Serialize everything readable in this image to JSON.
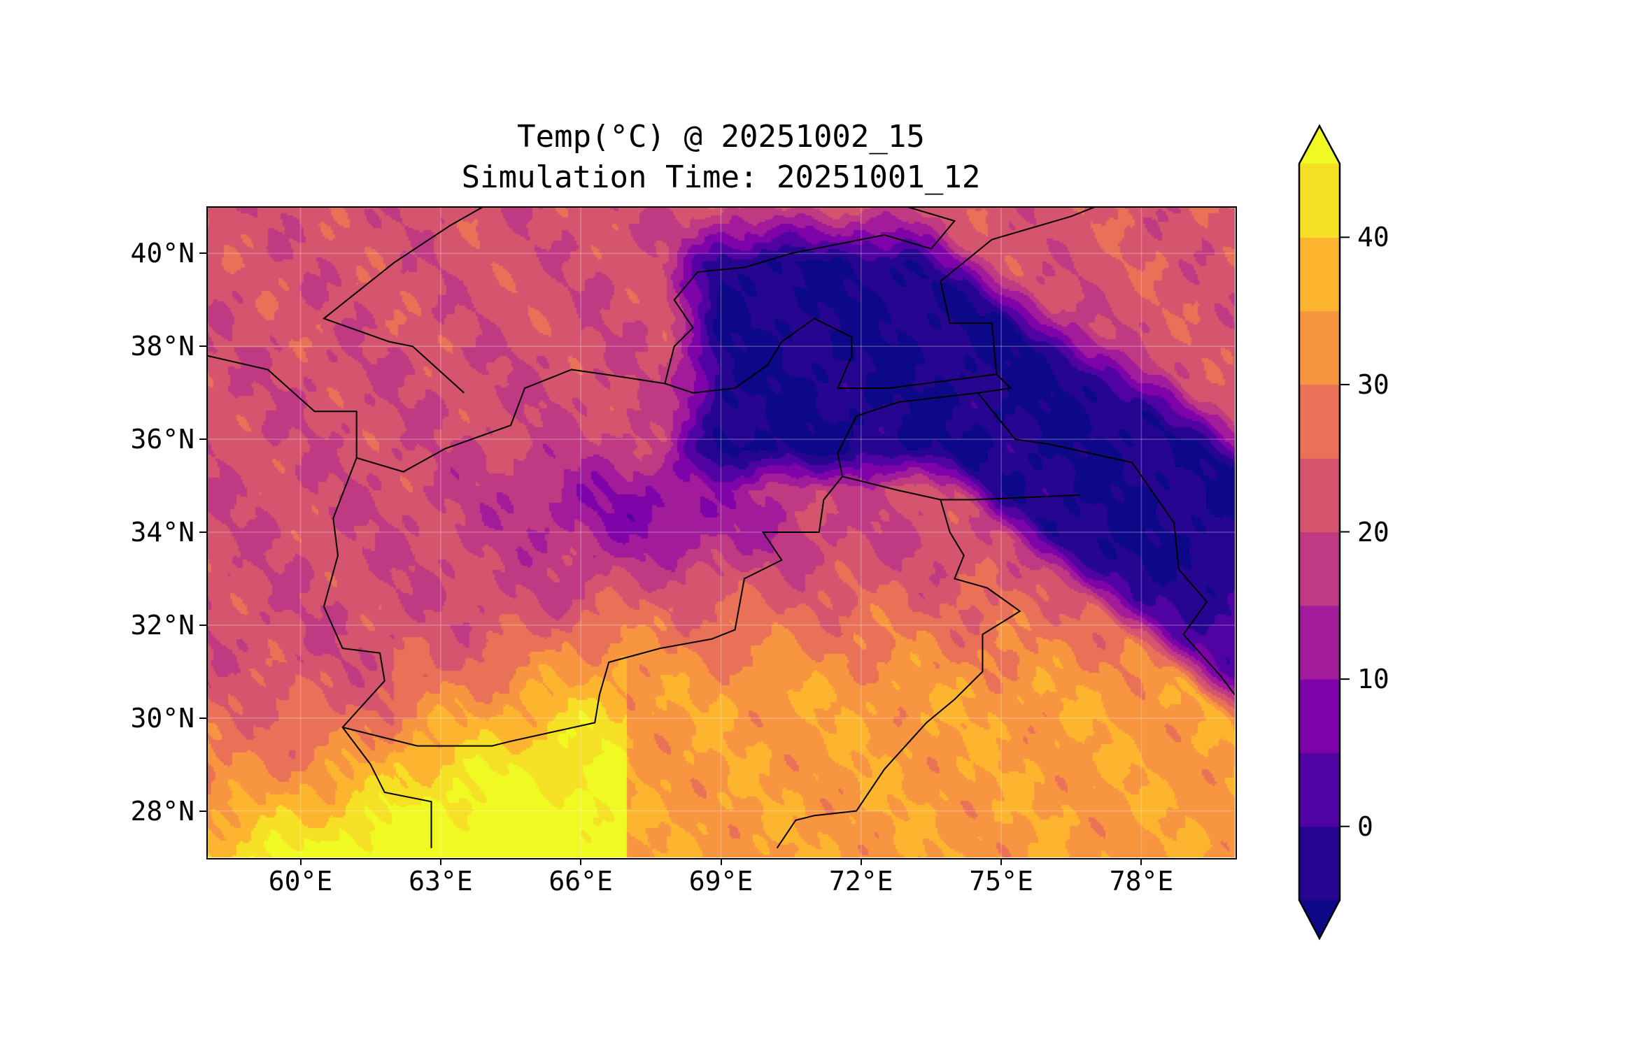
{
  "chart_data": {
    "type": "heatmap",
    "title": "Temp(°C) @ 20251002_15",
    "subtitle": "Simulation Time: 20251001_12",
    "xlabel": "",
    "ylabel": "",
    "xlim": [
      58,
      80
    ],
    "ylim": [
      27,
      41
    ],
    "x_ticks": [
      60,
      63,
      66,
      69,
      72,
      75,
      78
    ],
    "x_tick_labels": [
      "60°E",
      "63°E",
      "66°E",
      "69°E",
      "72°E",
      "75°E",
      "78°E"
    ],
    "y_ticks": [
      28,
      30,
      32,
      34,
      36,
      38,
      40
    ],
    "y_tick_labels": [
      "28°N",
      "30°N",
      "32°N",
      "34°N",
      "36°N",
      "38°N",
      "40°N"
    ],
    "grid": true,
    "colorbar": {
      "levels": [
        -5,
        0,
        5,
        10,
        15,
        20,
        25,
        30,
        35,
        40,
        45
      ],
      "ticks": [
        0,
        10,
        20,
        30,
        40
      ],
      "tick_labels": [
        "0",
        "10",
        "20",
        "30",
        "40"
      ],
      "extend": "both",
      "colors": [
        "#260591",
        "#5002a2",
        "#7e03a8",
        "#a11b9b",
        "#c03a83",
        "#d5546e",
        "#e97158",
        "#f89540",
        "#fdb52f",
        "#f5e026"
      ],
      "under_color": "#0d0887",
      "over_color": "#f0f921",
      "placement": "right"
    }
  }
}
